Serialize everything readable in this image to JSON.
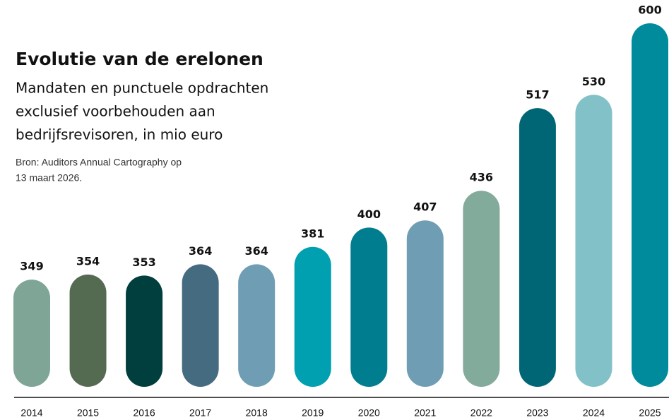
{
  "chart_data": {
    "type": "bar",
    "title": "Evolutie van de erelonen",
    "subtitle": [
      "Mandaten en punctuele opdrachten",
      "exclusief voorbehouden aan",
      "bedrijfsrevisoren, in mio euro"
    ],
    "source": [
      "Bron: Auditors Annual Cartography op",
      "13 maart 2026."
    ],
    "categories": [
      "2014",
      "2015",
      "2016",
      "2017",
      "2018",
      "2019",
      "2020",
      "2021",
      "2022",
      "2023",
      "2024",
      "2025"
    ],
    "values": [
      349,
      354,
      353,
      364,
      364,
      381,
      400,
      407,
      436,
      517,
      530,
      600
    ],
    "colors": [
      "#7fa596",
      "#546b52",
      "#003f3d",
      "#456b80",
      "#6f9db4",
      "#00a0b0",
      "#007d8f",
      "#6f9db4",
      "#83ab9b",
      "#006676",
      "#82c1c7",
      "#008b9c"
    ],
    "ylim": [
      244,
      600
    ]
  }
}
